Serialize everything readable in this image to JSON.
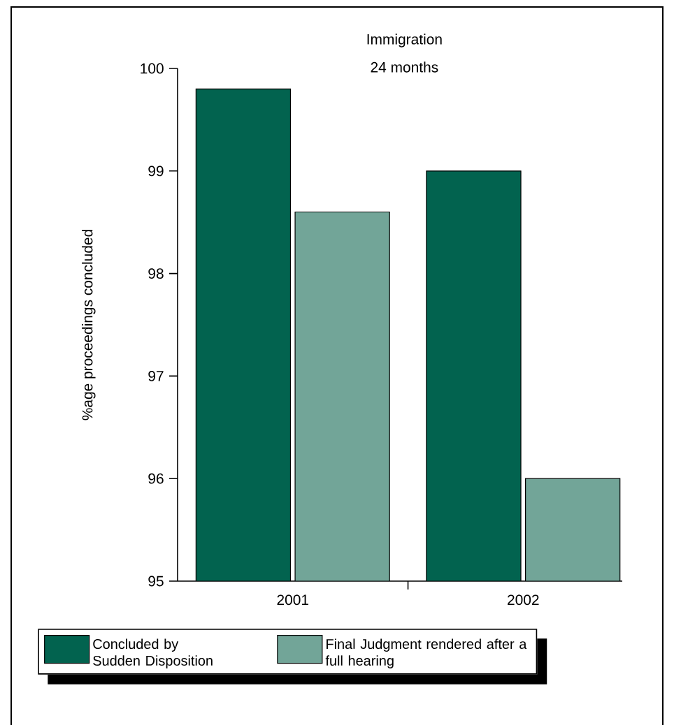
{
  "chart_data": {
    "type": "bar",
    "title": "Immigration",
    "subtitle": "24 months",
    "ylabel": "%age proceedings concluded",
    "categories": [
      "2001",
      "2002"
    ],
    "series": [
      {
        "name": "Concluded by Sudden Disposition",
        "color": "#02634f",
        "values": [
          99.8,
          99.0
        ]
      },
      {
        "name": "Final Judgment rendered after a full hearing",
        "color": "#72a598",
        "values": [
          98.6,
          96.0
        ]
      }
    ],
    "ylim": [
      95,
      100
    ],
    "yticks": [
      95,
      96,
      97,
      98,
      99,
      100
    ],
    "grid": false,
    "legend": "bottom"
  }
}
